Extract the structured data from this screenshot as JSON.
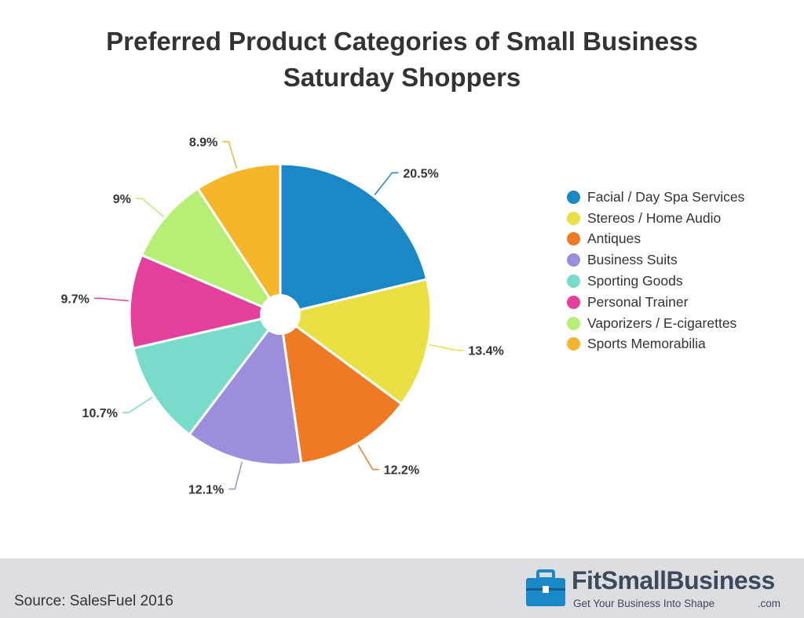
{
  "chart_data": {
    "type": "pie",
    "title": "Preferred Product Categories of Small Business Saturday Shoppers",
    "title_lines": [
      "Preferred Product Categories of Small Business",
      "Saturday Shoppers"
    ],
    "categories": [
      "Facial / Day Spa Services",
      "Stereos / Home Audio",
      "Antiques",
      "Business Suits",
      "Sporting Goods",
      "Personal Trainer",
      "Vaporizers / E-cigarettes",
      "Sports Memorabilia"
    ],
    "values": [
      20.5,
      13.4,
      12.2,
      12.1,
      10.7,
      9.7,
      9,
      8.9
    ],
    "labels": [
      "20.5%",
      "13.4%",
      "12.2%",
      "12.1%",
      "10.7%",
      "9.7%",
      "9%",
      "8.9%"
    ],
    "colors": [
      "#1a87c6",
      "#eae043",
      "#f07a23",
      "#9b8fdd",
      "#79dccb",
      "#e43f9c",
      "#b6ee76",
      "#f5b62b"
    ],
    "legend_position": "right",
    "donut_hole": true
  },
  "footer": {
    "source": "Source: SalesFuel 2016",
    "logo_name": "FitSmallBusiness",
    "logo_tagline": "Get Your Business Into Shape",
    "logo_suffix": ".com",
    "logo_color": "#1a87c6"
  }
}
